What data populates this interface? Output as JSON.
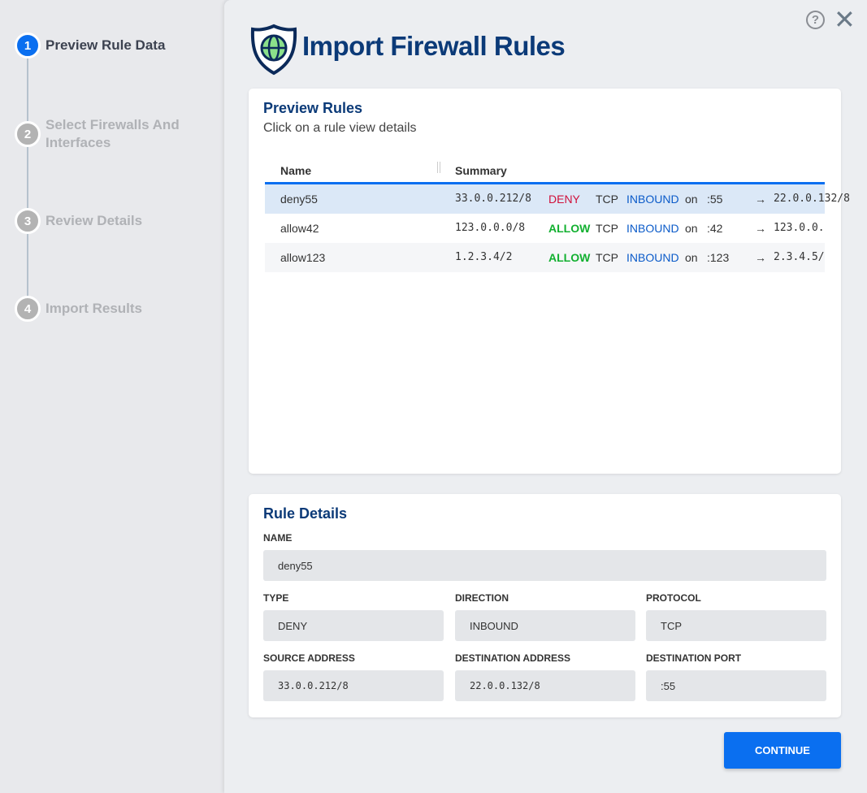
{
  "steps": [
    {
      "n": "1",
      "label": "Preview Rule Data"
    },
    {
      "n": "2",
      "label": "Select Firewalls And Interfaces"
    },
    {
      "n": "3",
      "label": "Review Details"
    },
    {
      "n": "4",
      "label": "Import Results"
    }
  ],
  "header": {
    "title": "Import Firewall Rules",
    "help_icon": "?",
    "close_icon": "✕"
  },
  "preview": {
    "title": "Preview Rules",
    "subtitle": "Click on a rule view details",
    "columns": [
      "Name",
      "Summary"
    ],
    "rows": [
      {
        "name": "deny55",
        "src": "33.0.0.212/8",
        "action": "DENY",
        "proto": "TCP",
        "dir": "INBOUND",
        "on": "on",
        "port": ":55",
        "arrow": "→",
        "dst": "22.0.0.132/8"
      },
      {
        "name": "allow42",
        "src": "123.0.0.0/8",
        "action": "ALLOW",
        "proto": "TCP",
        "dir": "INBOUND",
        "on": "on",
        "port": ":42",
        "arrow": "→",
        "dst": "123.0.0."
      },
      {
        "name": "allow123",
        "src": "1.2.3.4/2",
        "action": "ALLOW",
        "proto": "TCP",
        "dir": "INBOUND",
        "on": "on",
        "port": ":123",
        "arrow": "→",
        "dst": "2.3.4.5/"
      }
    ]
  },
  "details": {
    "title": "Rule Details",
    "name_label": "NAME",
    "name": "deny55",
    "type_label": "TYPE",
    "type": "DENY",
    "direction_label": "DIRECTION",
    "direction": "INBOUND",
    "protocol_label": "PROTOCOL",
    "protocol": "TCP",
    "source_label": "SOURCE ADDRESS",
    "source": "33.0.0.212/8",
    "dest_label": "DESTINATION ADDRESS",
    "dest": "22.0.0.132/8",
    "port_label": "DESTINATION PORT",
    "port": ":55"
  },
  "continue_label": "CONTINUE",
  "colors": {
    "accent": "#0a6ff0",
    "deny": "#d0103a",
    "allow": "#12b030",
    "direction": "#0b5bc9",
    "title": "#0b3a78"
  }
}
